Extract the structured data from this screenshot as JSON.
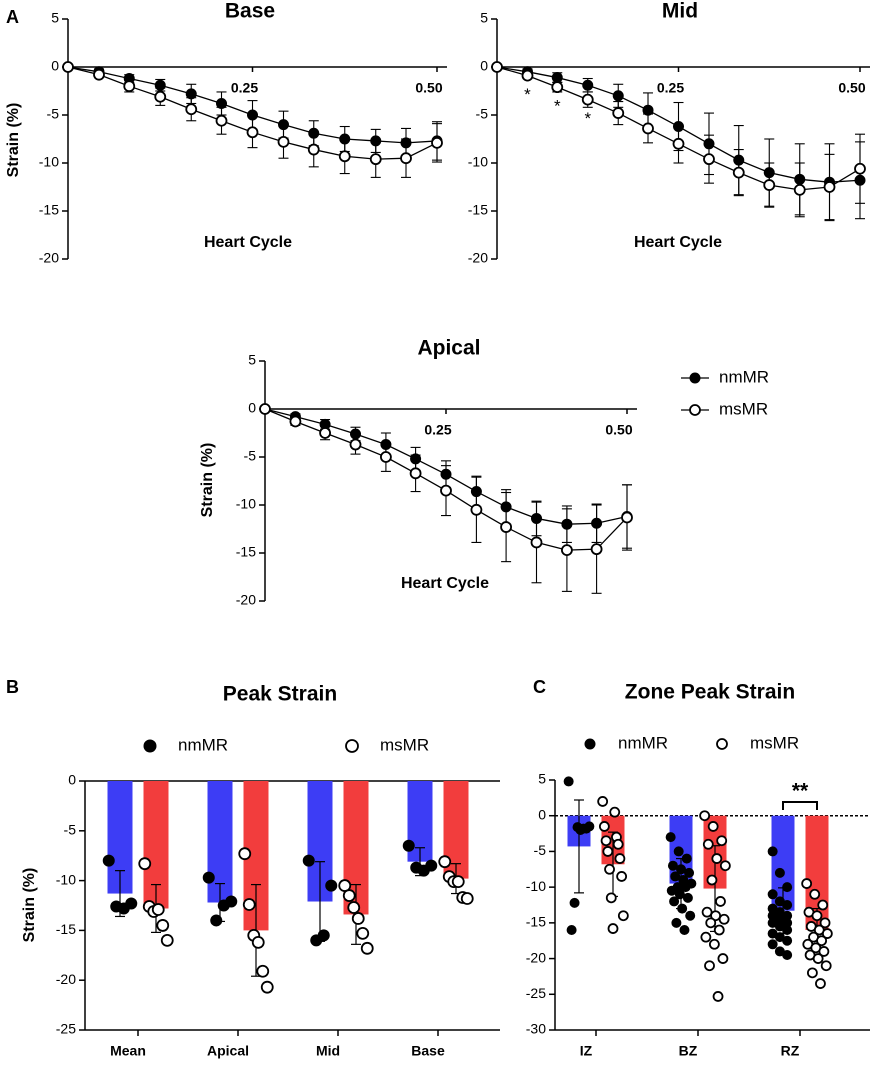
{
  "panel_labels": [
    "A",
    "B",
    "C"
  ],
  "chart_data": [
    {
      "type": "line",
      "title": "Base",
      "ylabel": "Strain (%)",
      "xlabel": "Heart Cycle",
      "x": [
        0,
        0.042,
        0.083,
        0.125,
        0.167,
        0.208,
        0.25,
        0.292,
        0.333,
        0.375,
        0.417,
        0.458,
        0.5
      ],
      "xlim": [
        0,
        0.5
      ],
      "xticks": [
        0.25,
        {
          "value": 0.5,
          "label": "0.50"
        }
      ],
      "ylim": [
        -20,
        5
      ],
      "yticks": [
        5,
        0,
        -5,
        -10,
        -15,
        -20
      ],
      "series": [
        {
          "color": "#000000",
          "marker": "filled",
          "values": [
            0,
            -0.5,
            -1.2,
            -1.9,
            -2.8,
            -3.8,
            -5,
            -6,
            -6.9,
            -7.5,
            -7.7,
            -7.9,
            -7.7
          ],
          "errors": [
            0,
            0.3,
            0.4,
            0.6,
            1,
            1.2,
            1.5,
            1.4,
            1.3,
            1.3,
            1.2,
            1.5,
            2
          ]
        },
        {
          "color": "#000000",
          "marker": "open",
          "values": [
            0,
            -0.8,
            -2,
            -3.1,
            -4.4,
            -5.6,
            -6.8,
            -7.8,
            -8.6,
            -9.3,
            -9.6,
            -9.5,
            -7.9
          ],
          "errors": [
            0,
            0.3,
            0.6,
            0.9,
            1.2,
            1.4,
            1.6,
            1.7,
            1.8,
            1.8,
            1.9,
            2,
            2
          ]
        }
      ]
    },
    {
      "type": "line",
      "title": "Mid",
      "xlabel": "Heart Cycle",
      "x": [
        0,
        0.042,
        0.083,
        0.125,
        0.167,
        0.208,
        0.25,
        0.292,
        0.333,
        0.375,
        0.417,
        0.458,
        0.5
      ],
      "xlim": [
        0,
        0.5
      ],
      "xticks": [
        0.25,
        {
          "value": 0.5,
          "label": "0.50"
        }
      ],
      "ylim": [
        -20,
        5
      ],
      "yticks": [
        5,
        0,
        -5,
        -10,
        -15,
        -20
      ],
      "significance": [
        null,
        "*",
        "*",
        "*",
        null,
        null,
        null,
        null,
        null,
        null,
        null,
        null,
        null
      ],
      "series": [
        {
          "color": "#000000",
          "marker": "filled",
          "values": [
            0,
            -0.5,
            -1.1,
            -1.9,
            -3,
            -4.5,
            -6.2,
            -8,
            -9.7,
            -11,
            -11.7,
            -12,
            -11.8
          ],
          "errors": [
            0,
            0.3,
            0.5,
            0.7,
            1.2,
            1.8,
            2.5,
            3.2,
            3.6,
            3.5,
            3.7,
            4,
            4
          ]
        },
        {
          "color": "#000000",
          "marker": "open",
          "values": [
            0,
            -0.9,
            -2.1,
            -3.4,
            -4.8,
            -6.4,
            -8,
            -9.6,
            -11,
            -12.3,
            -12.8,
            -12.5,
            -10.6
          ],
          "errors": [
            0,
            0.3,
            0.5,
            0.8,
            1.2,
            1.5,
            2,
            2.5,
            2.4,
            2.3,
            2.8,
            3.4,
            3.6
          ]
        }
      ]
    },
    {
      "type": "line",
      "title": "Apical",
      "ylabel": "Strain (%)",
      "xlabel": "Heart Cycle",
      "legend": true,
      "x": [
        0,
        0.042,
        0.083,
        0.125,
        0.167,
        0.208,
        0.25,
        0.292,
        0.333,
        0.375,
        0.417,
        0.458,
        0.5
      ],
      "xlim": [
        0,
        0.5
      ],
      "xticks": [
        0.25,
        {
          "value": 0.5,
          "label": "0.50"
        }
      ],
      "ylim": [
        -20,
        5
      ],
      "yticks": [
        5,
        0,
        -5,
        -10,
        -15,
        -20
      ],
      "series": [
        {
          "name": "nmMR",
          "color": "#000000",
          "marker": "filled",
          "values": [
            0,
            -0.8,
            -1.6,
            -2.6,
            -3.7,
            -5.2,
            -6.8,
            -8.6,
            -10.2,
            -11.4,
            -12,
            -11.9,
            -11.2
          ],
          "errors": [
            0,
            0.3,
            0.5,
            0.7,
            1.2,
            1.2,
            1.4,
            1.6,
            1.8,
            1.8,
            1.9,
            2,
            3.3
          ]
        },
        {
          "name": "msMR",
          "color": "#000000",
          "marker": "open",
          "values": [
            0,
            -1.3,
            -2.5,
            -3.7,
            -5,
            -6.7,
            -8.5,
            -10.5,
            -12.3,
            -13.9,
            -14.7,
            -14.6,
            -11.3
          ],
          "errors": [
            0,
            0.4,
            0.7,
            1,
            1.5,
            1.9,
            2.6,
            3.4,
            3.6,
            4.2,
            4.3,
            4.6,
            3.4
          ]
        }
      ]
    },
    {
      "type": "bar",
      "title": "Peak Strain",
      "ylabel": "Strain (%)",
      "legend": true,
      "categories": [
        "Mean",
        "Apical",
        "Mid",
        "Base"
      ],
      "ylim": [
        -25,
        0
      ],
      "yticks": [
        0,
        -5,
        -10,
        -15,
        -20,
        -25
      ],
      "series": [
        {
          "name": "nmMR",
          "color": "#3d3df5",
          "marker": "filled",
          "values": [
            -11.3,
            -12.2,
            -12.1,
            -8.1
          ],
          "errors": [
            2.3,
            1.9,
            4.0,
            1.4
          ],
          "points": [
            [
              -8,
              -12.3,
              -12.8,
              -12.6
            ],
            [
              -9.7,
              -12.1,
              -12.5,
              -14
            ],
            [
              -8,
              -10.5,
              -15.5,
              -16
            ],
            [
              -6.5,
              -8.5,
              -9,
              -8.7
            ]
          ]
        },
        {
          "name": "msMR",
          "color": "#f23d3d",
          "marker": "open",
          "values": [
            -12.8,
            -15,
            -13.4,
            -9.8
          ],
          "errors": [
            2.4,
            4.6,
            3.0,
            1.5
          ],
          "points": [
            [
              -8.3,
              -12.6,
              -13.1,
              -12.9,
              -14.5,
              -16
            ],
            [
              -7.3,
              -12.4,
              -15.5,
              -16.2,
              -19.1,
              -20.7
            ],
            [
              -10.5,
              -11.5,
              -12.7,
              -13.8,
              -15.3,
              -16.8
            ],
            [
              -8.1,
              -9.6,
              -10.1,
              -10.1,
              -11.7,
              -11.8
            ]
          ]
        }
      ]
    },
    {
      "type": "bar",
      "title": "Zone Peak Strain",
      "legend": true,
      "categories": [
        "IZ",
        "BZ",
        "RZ"
      ],
      "ylim": [
        -30,
        5
      ],
      "yticks": [
        5,
        0,
        -5,
        -10,
        -15,
        -20,
        -25,
        -30
      ],
      "significance": [
        null,
        null,
        "**"
      ],
      "series": [
        {
          "name": "nmMR",
          "color": "#3d3df5",
          "marker": "filled",
          "values": [
            -4.3,
            -9.5,
            -13.3
          ],
          "errors": [
            6.5,
            3.5,
            3.2
          ],
          "points": [
            [
              4.8,
              -1.5,
              -1.8,
              -1.8,
              -2,
              -1.6,
              -12.2,
              -16
            ],
            [
              -3,
              -5,
              -6,
              -7,
              -7.5,
              -8,
              -8.5,
              -9,
              -9.5,
              -10,
              -10,
              -10.5,
              -11,
              -11.5,
              -12,
              -13,
              -14,
              -15,
              -16
            ],
            [
              -5,
              -8,
              -10,
              -11,
              -12,
              -12.5,
              -13,
              -13.5,
              -14,
              -14,
              -14.5,
              -15,
              -15,
              -15.5,
              -16,
              -16.5,
              -17,
              -17.5,
              -18,
              -19,
              -19.5
            ]
          ]
        },
        {
          "name": "msMR",
          "color": "#f23d3d",
          "marker": "open",
          "values": [
            -6.8,
            -10.2,
            -16
          ],
          "errors": [
            4.5,
            6,
            3
          ],
          "points": [
            [
              2,
              0.5,
              -1.5,
              -3,
              -3.5,
              -4,
              -5,
              -6,
              -7.5,
              -8.5,
              -11.5,
              -14,
              -15.8
            ],
            [
              0,
              -1.5,
              -3.5,
              -4,
              -6,
              -7,
              -9,
              -12,
              -13.5,
              -14,
              -14.5,
              -15,
              -16,
              -17,
              -18,
              -20,
              -21,
              -25.3
            ],
            [
              -9.5,
              -11,
              -12.5,
              -13.5,
              -14,
              -15,
              -15.5,
              -16,
              -16.5,
              -17,
              -17.5,
              -18,
              -18.5,
              -19,
              -19.5,
              -20,
              -21,
              -22,
              -23.5
            ]
          ]
        }
      ]
    }
  ]
}
